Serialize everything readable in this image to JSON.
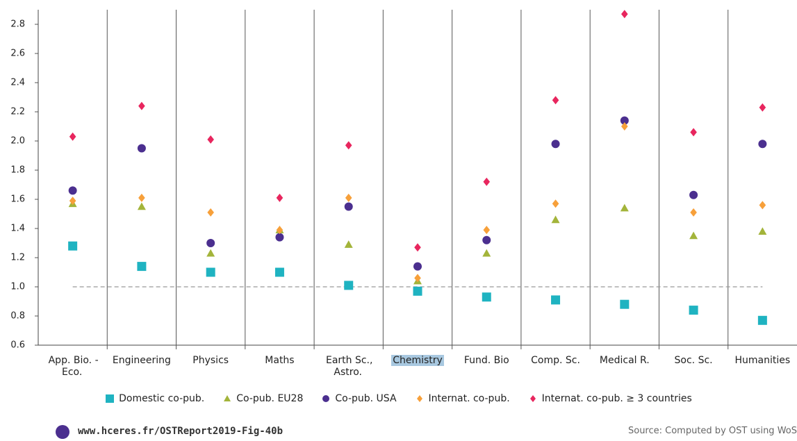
{
  "chart_data": {
    "type": "dot",
    "categories": [
      "App. Bio. - Eco.",
      "Engineering",
      "Physics",
      "Maths",
      "Earth Sc., Astro.",
      "Chemistry",
      "Fund. Bio",
      "Comp. Sc.",
      "Medical R.",
      "Soc. Sc.",
      "Humanities"
    ],
    "highlighted_category_index": 5,
    "series": [
      {
        "name": "Domestic co-pub.",
        "marker": "square",
        "color": "#1fb3c1",
        "values": [
          1.28,
          1.14,
          1.1,
          1.1,
          1.01,
          0.97,
          0.93,
          0.91,
          0.88,
          0.84,
          0.77
        ]
      },
      {
        "name": "Co-pub. EU28",
        "marker": "triangle",
        "color": "#a3b43a",
        "values": [
          1.57,
          1.55,
          1.23,
          1.39,
          1.29,
          1.04,
          1.23,
          1.46,
          1.54,
          1.35,
          1.38
        ]
      },
      {
        "name": "Co-pub. USA",
        "marker": "circle",
        "color": "#4b2f8f",
        "values": [
          1.66,
          1.95,
          1.3,
          1.34,
          1.55,
          1.14,
          1.32,
          1.98,
          2.14,
          1.63,
          1.98
        ]
      },
      {
        "name": "Internat. co-pub.",
        "marker": "diamond",
        "color": "#f7a03a",
        "values": [
          1.59,
          1.61,
          1.51,
          1.39,
          1.61,
          1.06,
          1.39,
          1.57,
          2.1,
          1.51,
          1.56
        ]
      },
      {
        "name": "Internat. co-pub. ≥ 3 countries",
        "marker": "diamond",
        "color": "#e8265e",
        "values": [
          2.03,
          2.24,
          2.01,
          1.61,
          1.97,
          1.27,
          1.72,
          2.28,
          2.87,
          2.06,
          2.23
        ]
      }
    ],
    "ylim": [
      0.6,
      2.9
    ],
    "yticks": [
      {
        "value": 0.6,
        "label": "0.6"
      },
      {
        "value": 0.8,
        "label": "0.8"
      },
      {
        "value": 1.0,
        "label": "1.0"
      },
      {
        "value": 1.2,
        "label": "1.2"
      },
      {
        "value": 1.4,
        "label": "1.4"
      },
      {
        "value": 1.6,
        "label": "1.6"
      },
      {
        "value": 1.8,
        "label": "1.8"
      },
      {
        "value": 2.0,
        "label": "2.0"
      },
      {
        "value": 2.2,
        "label": "2.2"
      },
      {
        "value": 2.4,
        "label": "2.4"
      },
      {
        "value": 2.6,
        "label": "2.6"
      },
      {
        "value": 2.8,
        "label": "2.8"
      }
    ],
    "reference_line": 1.0,
    "category_separators": true
  },
  "footer": {
    "link": "www.hceres.fr/OSTReport2019-Fig-40b",
    "source": "Source: Computed by OST using WoS"
  }
}
